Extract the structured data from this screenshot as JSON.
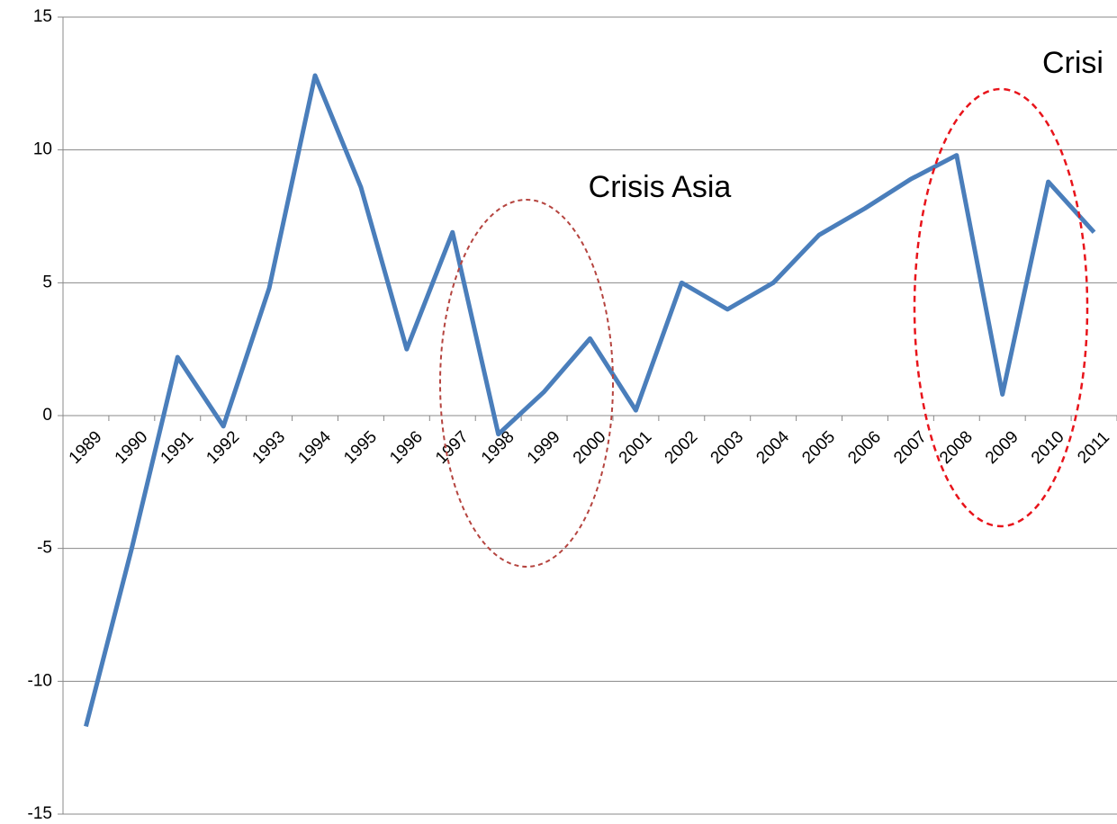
{
  "chart_data": {
    "type": "line",
    "categories": [
      "1989",
      "1990",
      "1991",
      "1992",
      "1993",
      "1994",
      "1995",
      "1996",
      "1997",
      "1998",
      "1999",
      "2000",
      "2001",
      "2002",
      "2003",
      "2004",
      "2005",
      "2006",
      "2007",
      "2008",
      "2009",
      "2010",
      "2011"
    ],
    "series": [
      {
        "color": "#4a7ebb",
        "values": [
          -11.7,
          -5.0,
          2.2,
          -0.4,
          4.8,
          12.8,
          8.6,
          2.5,
          6.9,
          -0.7,
          0.9,
          2.9,
          0.2,
          5.0,
          4.0,
          5.0,
          6.8,
          7.8,
          8.9,
          9.8,
          0.8,
          8.8,
          6.9
        ]
      }
    ],
    "ylim": [
      -15,
      15
    ],
    "yticks": [
      -15,
      -10,
      -5,
      0,
      5,
      10,
      15
    ],
    "grid": true,
    "annotations": [
      "Crisis Asia",
      "Crisi"
    ]
  }
}
